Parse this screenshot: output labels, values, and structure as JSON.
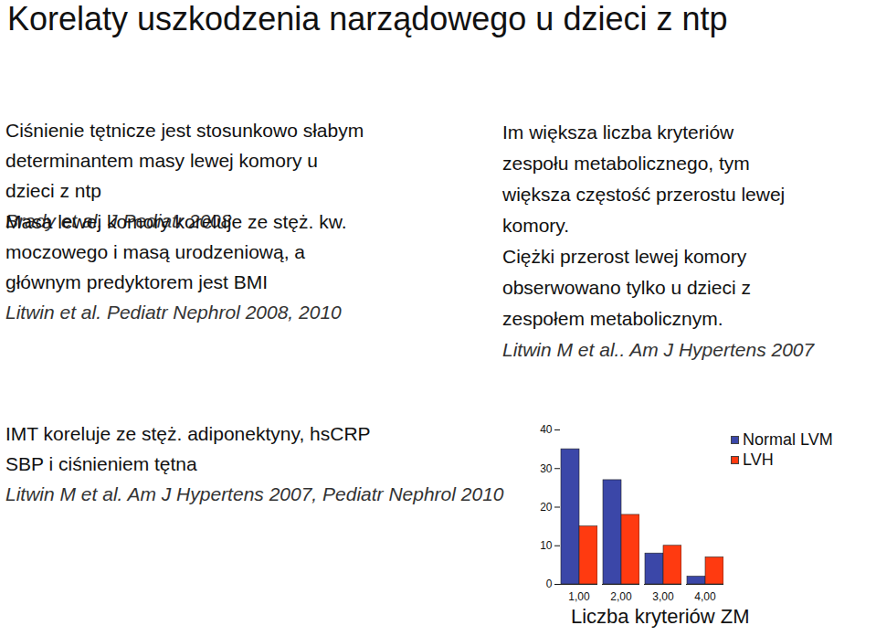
{
  "title": "Korelaty uszkodzenia narządowego u dzieci z ntp",
  "left_blocks": [
    {
      "lines": [
        "Ciśnienie tętnicze jest stosunkowo słabym",
        "determinantem masy lewej komory u",
        "dzieci z ntp"
      ],
      "citation": "Brady et al. J Pediatr 2008"
    },
    {
      "lines": [
        "Masa lewej komory koreluje ze stęż. kw.",
        "moczowego i masą urodzeniową, a",
        "głównym predyktorem jest BMI"
      ],
      "citation": "Litwin et al. Pediatr Nephrol 2008, 2010"
    },
    {
      "lines": [
        "IMT koreluje ze stęż. adiponektyny, hsCRP",
        "SBP i ciśnieniem tętna"
      ],
      "citation": "Litwin M et al. Am J Hypertens 2007, Pediatr Nephrol 2010"
    }
  ],
  "right_block": {
    "lines": [
      "Im większa liczba kryteriów",
      "zespołu metabolicznego, tym",
      "większa częstość przerostu lewej",
      "komory.",
      "Ciężki przerost lewej komory",
      "obserwowano tylko u dzieci z",
      "zespołem metabolicznym."
    ],
    "citation": "Litwin M et al.. Am J Hypertens 2007"
  },
  "chart_data": {
    "type": "bar",
    "x_label": "Liczba kryteriów ZM",
    "categories": [
      "1,00",
      "2,00",
      "3,00",
      "4,00"
    ],
    "series": [
      {
        "name": "Normal LVM",
        "color": "#3b47a8",
        "values": [
          35,
          27,
          8,
          2
        ]
      },
      {
        "name": "LVH",
        "color": "#ff3a10",
        "values": [
          15,
          18,
          10,
          7
        ]
      }
    ],
    "ylim": [
      0,
      40
    ],
    "yticks": [
      0,
      10,
      20,
      30,
      40
    ],
    "legend": "top-right"
  }
}
